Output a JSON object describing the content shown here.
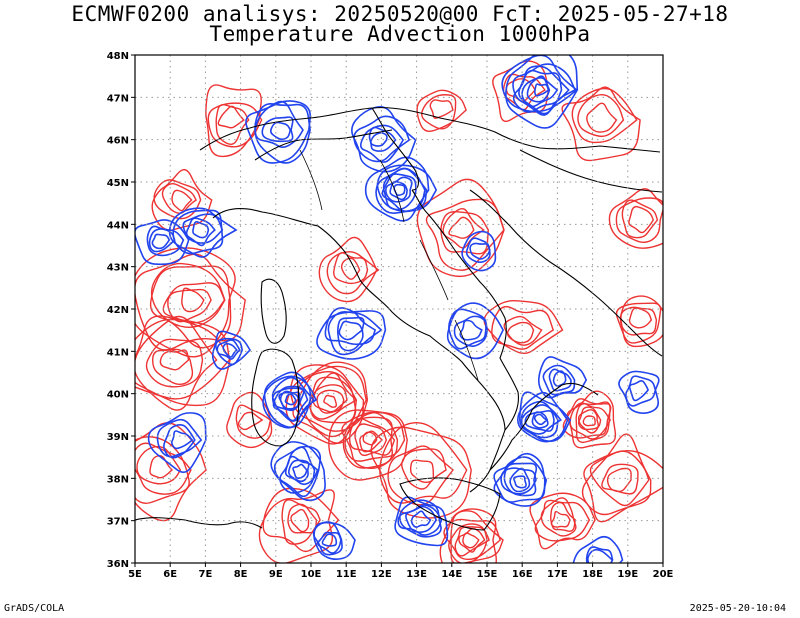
{
  "title_line1": "ECMWF0200 analisys: 20250520@00 FcT: 2025-05-27+18",
  "title_line2": "Temperature Advection 1000hPa",
  "footer_left": "GrADS/COLA",
  "footer_right": "2025-05-20-10:04",
  "colors": {
    "positive": "#ee3333",
    "negative": "#2244ee",
    "border": "#000000",
    "grid": "#999999"
  },
  "map": {
    "lon_range": [
      5,
      20
    ],
    "lat_range": [
      36,
      48
    ],
    "lon_ticks": [
      "5E",
      "6E",
      "7E",
      "8E",
      "9E",
      "10E",
      "11E",
      "12E",
      "13E",
      "14E",
      "15E",
      "16E",
      "17E",
      "18E",
      "19E",
      "20E"
    ],
    "lat_ticks": [
      "36N",
      "37N",
      "38N",
      "39N",
      "40N",
      "41N",
      "42N",
      "43N",
      "44N",
      "45N",
      "46N",
      "47N",
      "48N"
    ]
  }
}
